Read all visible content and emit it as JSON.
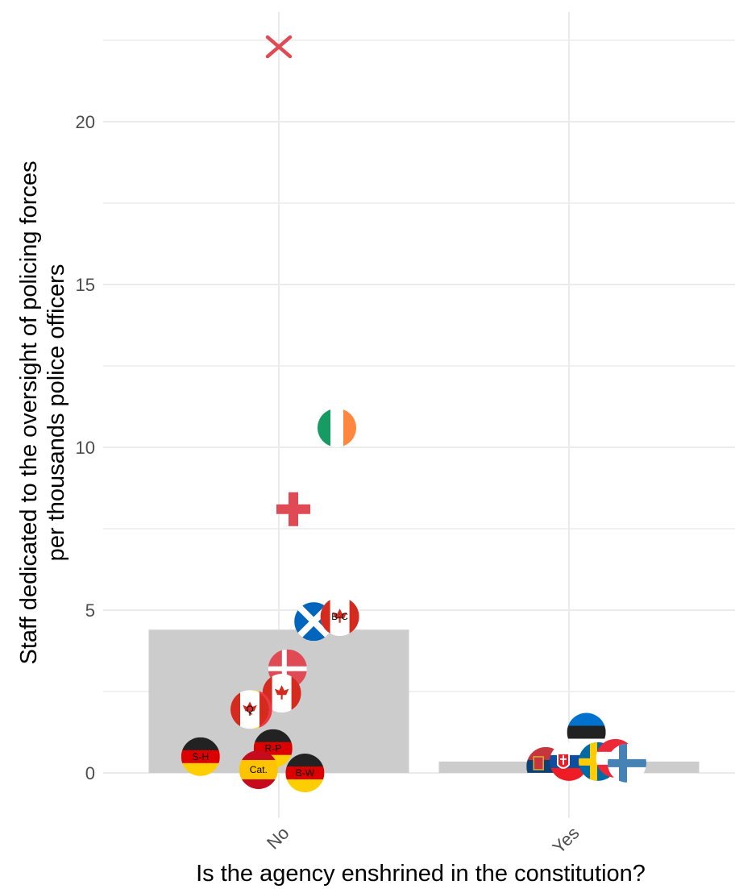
{
  "chart_data": {
    "type": "bar",
    "xlabel": "Is the agency enshrined in the constitution?",
    "ylabel": [
      "Staff dedicated to the oversight of policing forces",
      "per thousands police officers"
    ],
    "categories": [
      "No",
      "Yes"
    ],
    "values": [
      4.4,
      0.35
    ],
    "ylim": [
      -1.2,
      23.5
    ],
    "yticks": [
      0,
      5,
      10,
      15,
      20
    ],
    "grid": true,
    "bar_color": "#cccccd",
    "points": [
      {
        "category": "No",
        "offset": 0.0,
        "y": 22.3,
        "flag": "georgia",
        "label": ""
      },
      {
        "category": "No",
        "offset": 0.05,
        "y": 8.1,
        "flag": "switzerland",
        "label": ""
      },
      {
        "category": "No",
        "offset": 0.2,
        "y": 10.6,
        "flag": "ireland",
        "label": ""
      },
      {
        "category": "No",
        "offset": 0.12,
        "y": 4.65,
        "flag": "scotland",
        "label": ""
      },
      {
        "category": "No",
        "offset": 0.21,
        "y": 4.8,
        "flag": "canada",
        "label": "B-C"
      },
      {
        "category": "No",
        "offset": 0.03,
        "y": 3.2,
        "flag": "denmark",
        "label": ""
      },
      {
        "category": "No",
        "offset": 0.01,
        "y": 2.45,
        "flag": "canada",
        "label": ""
      },
      {
        "category": "No",
        "offset": -0.09,
        "y": 1.95,
        "flag": "belgium",
        "label": ""
      },
      {
        "category": "No",
        "offset": -0.1,
        "y": 1.95,
        "flag": "canada",
        "label": "Q"
      },
      {
        "category": "No",
        "offset": -0.27,
        "y": 0.5,
        "flag": "germany",
        "label": "S-H"
      },
      {
        "category": "No",
        "offset": -0.02,
        "y": 0.75,
        "flag": "germany",
        "label": "R-P"
      },
      {
        "category": "No",
        "offset": -0.07,
        "y": 0.1,
        "flag": "spain",
        "label": "Cat."
      },
      {
        "category": "No",
        "offset": 0.09,
        "y": 0.0,
        "flag": "germany",
        "label": "B-W"
      },
      {
        "category": "Yes",
        "offset": 0.06,
        "y": 1.25,
        "flag": "estonia",
        "label": ""
      },
      {
        "category": "Yes",
        "offset": -0.08,
        "y": 0.2,
        "flag": "serbia",
        "label": ""
      },
      {
        "category": "Yes",
        "offset": 0.0,
        "y": 0.35,
        "flag": "slovakia",
        "label": ""
      },
      {
        "category": "Yes",
        "offset": 0.1,
        "y": 0.35,
        "flag": "sweden",
        "label": ""
      },
      {
        "category": "Yes",
        "offset": 0.16,
        "y": 0.45,
        "flag": "austria",
        "label": ""
      },
      {
        "category": "Yes",
        "offset": 0.2,
        "y": 0.3,
        "flag": "finland",
        "label": ""
      }
    ]
  },
  "colors": {
    "grid": "#ebebeb",
    "bar": "#cccccd",
    "georgia_cross": "#e04a55",
    "swiss_cross": "#e04a55"
  }
}
